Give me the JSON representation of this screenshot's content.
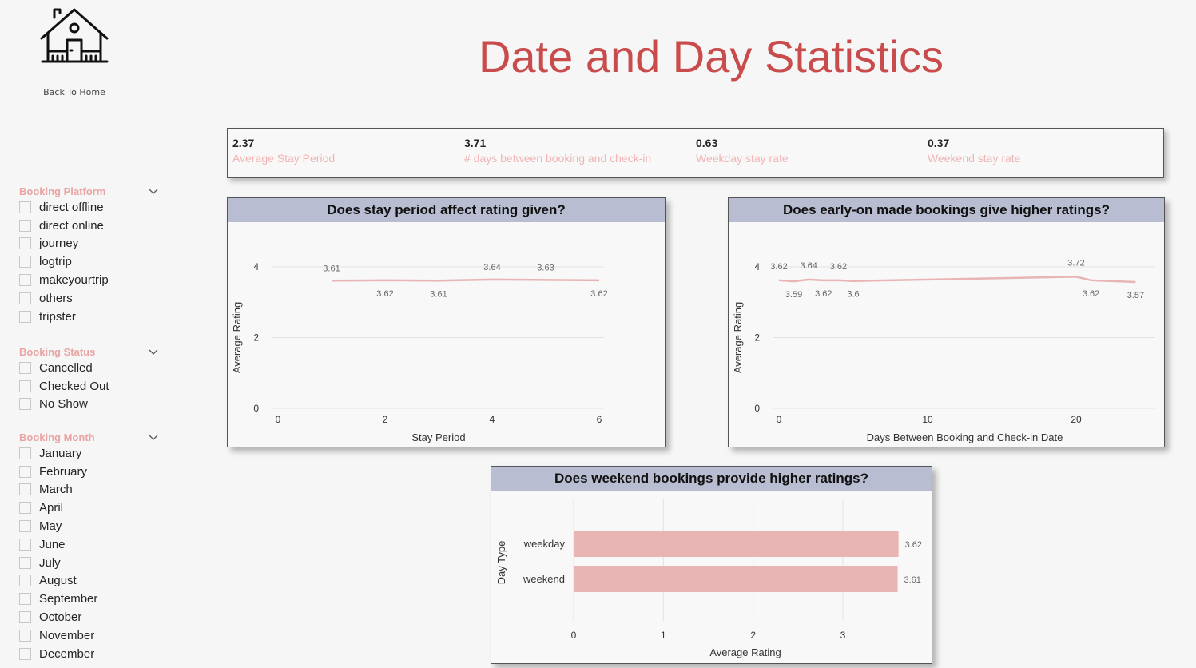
{
  "nav": {
    "back_label": "Back To Home",
    "home_icon": "house-icon"
  },
  "title": "Date and Day Statistics",
  "colors": {
    "title": "#c94c4c",
    "accent": "#e8b4b4",
    "slicer_title": "#eaa4a4",
    "header_bg": "#b8bdd1"
  },
  "slicers": {
    "platform": {
      "title": "Booking Platform",
      "items": [
        "direct offline",
        "direct online",
        "journey",
        "logtrip",
        "makeyourtrip",
        "others",
        "tripster"
      ]
    },
    "status": {
      "title": "Booking Status",
      "items": [
        "Cancelled",
        "Checked Out",
        "No Show"
      ]
    },
    "month": {
      "title": "Booking Month",
      "items": [
        "January",
        "February",
        "March",
        "April",
        "May",
        "June",
        "July",
        "August",
        "September",
        "October",
        "November",
        "December"
      ]
    }
  },
  "kpis": [
    {
      "value": "2.37",
      "label": "Average Stay Period"
    },
    {
      "value": "3.71",
      "label": "# days between booking and check-in"
    },
    {
      "value": "0.63",
      "label": "Weekday stay rate"
    },
    {
      "value": "0.37",
      "label": "Weekend stay rate"
    }
  ],
  "chart_data": [
    {
      "type": "line",
      "title": "Does stay period affect rating given?",
      "xlabel": "Stay Period",
      "ylabel": "Average Rating",
      "x": [
        1,
        2,
        3,
        4,
        5,
        6
      ],
      "y": [
        3.61,
        3.62,
        3.61,
        3.64,
        3.63,
        3.62
      ],
      "xlim": [
        0,
        6
      ],
      "ylim": [
        0,
        4
      ],
      "xticks": [
        0,
        2,
        4,
        6
      ],
      "yticks": [
        0,
        2,
        4
      ],
      "color": "#e8b4b4",
      "grid": true
    },
    {
      "type": "line",
      "title": "Does early-on made bookings give higher ratings?",
      "xlabel": "Days Between Booking and Check-in Date",
      "ylabel": "Average Rating",
      "x": [
        0,
        1,
        2,
        3,
        4,
        5,
        20,
        21,
        24
      ],
      "y": [
        3.62,
        3.59,
        3.64,
        3.62,
        3.62,
        3.6,
        3.72,
        3.62,
        3.57
      ],
      "xlim": [
        0,
        25
      ],
      "ylim": [
        0,
        4
      ],
      "xticks": [
        0,
        10,
        20
      ],
      "yticks": [
        0,
        2,
        4
      ],
      "color": "#e8b4b4",
      "grid": true
    },
    {
      "type": "bar",
      "orientation": "horizontal",
      "title": "Does weekend bookings provide higher ratings?",
      "xlabel": "Average Rating",
      "ylabel": "Day Type",
      "categories": [
        "weekday",
        "weekend"
      ],
      "values": [
        3.62,
        3.61
      ],
      "xlim": [
        0,
        3.65
      ],
      "xticks": [
        0,
        1,
        2,
        3
      ],
      "color": "#e8b4b4",
      "grid": true
    }
  ]
}
